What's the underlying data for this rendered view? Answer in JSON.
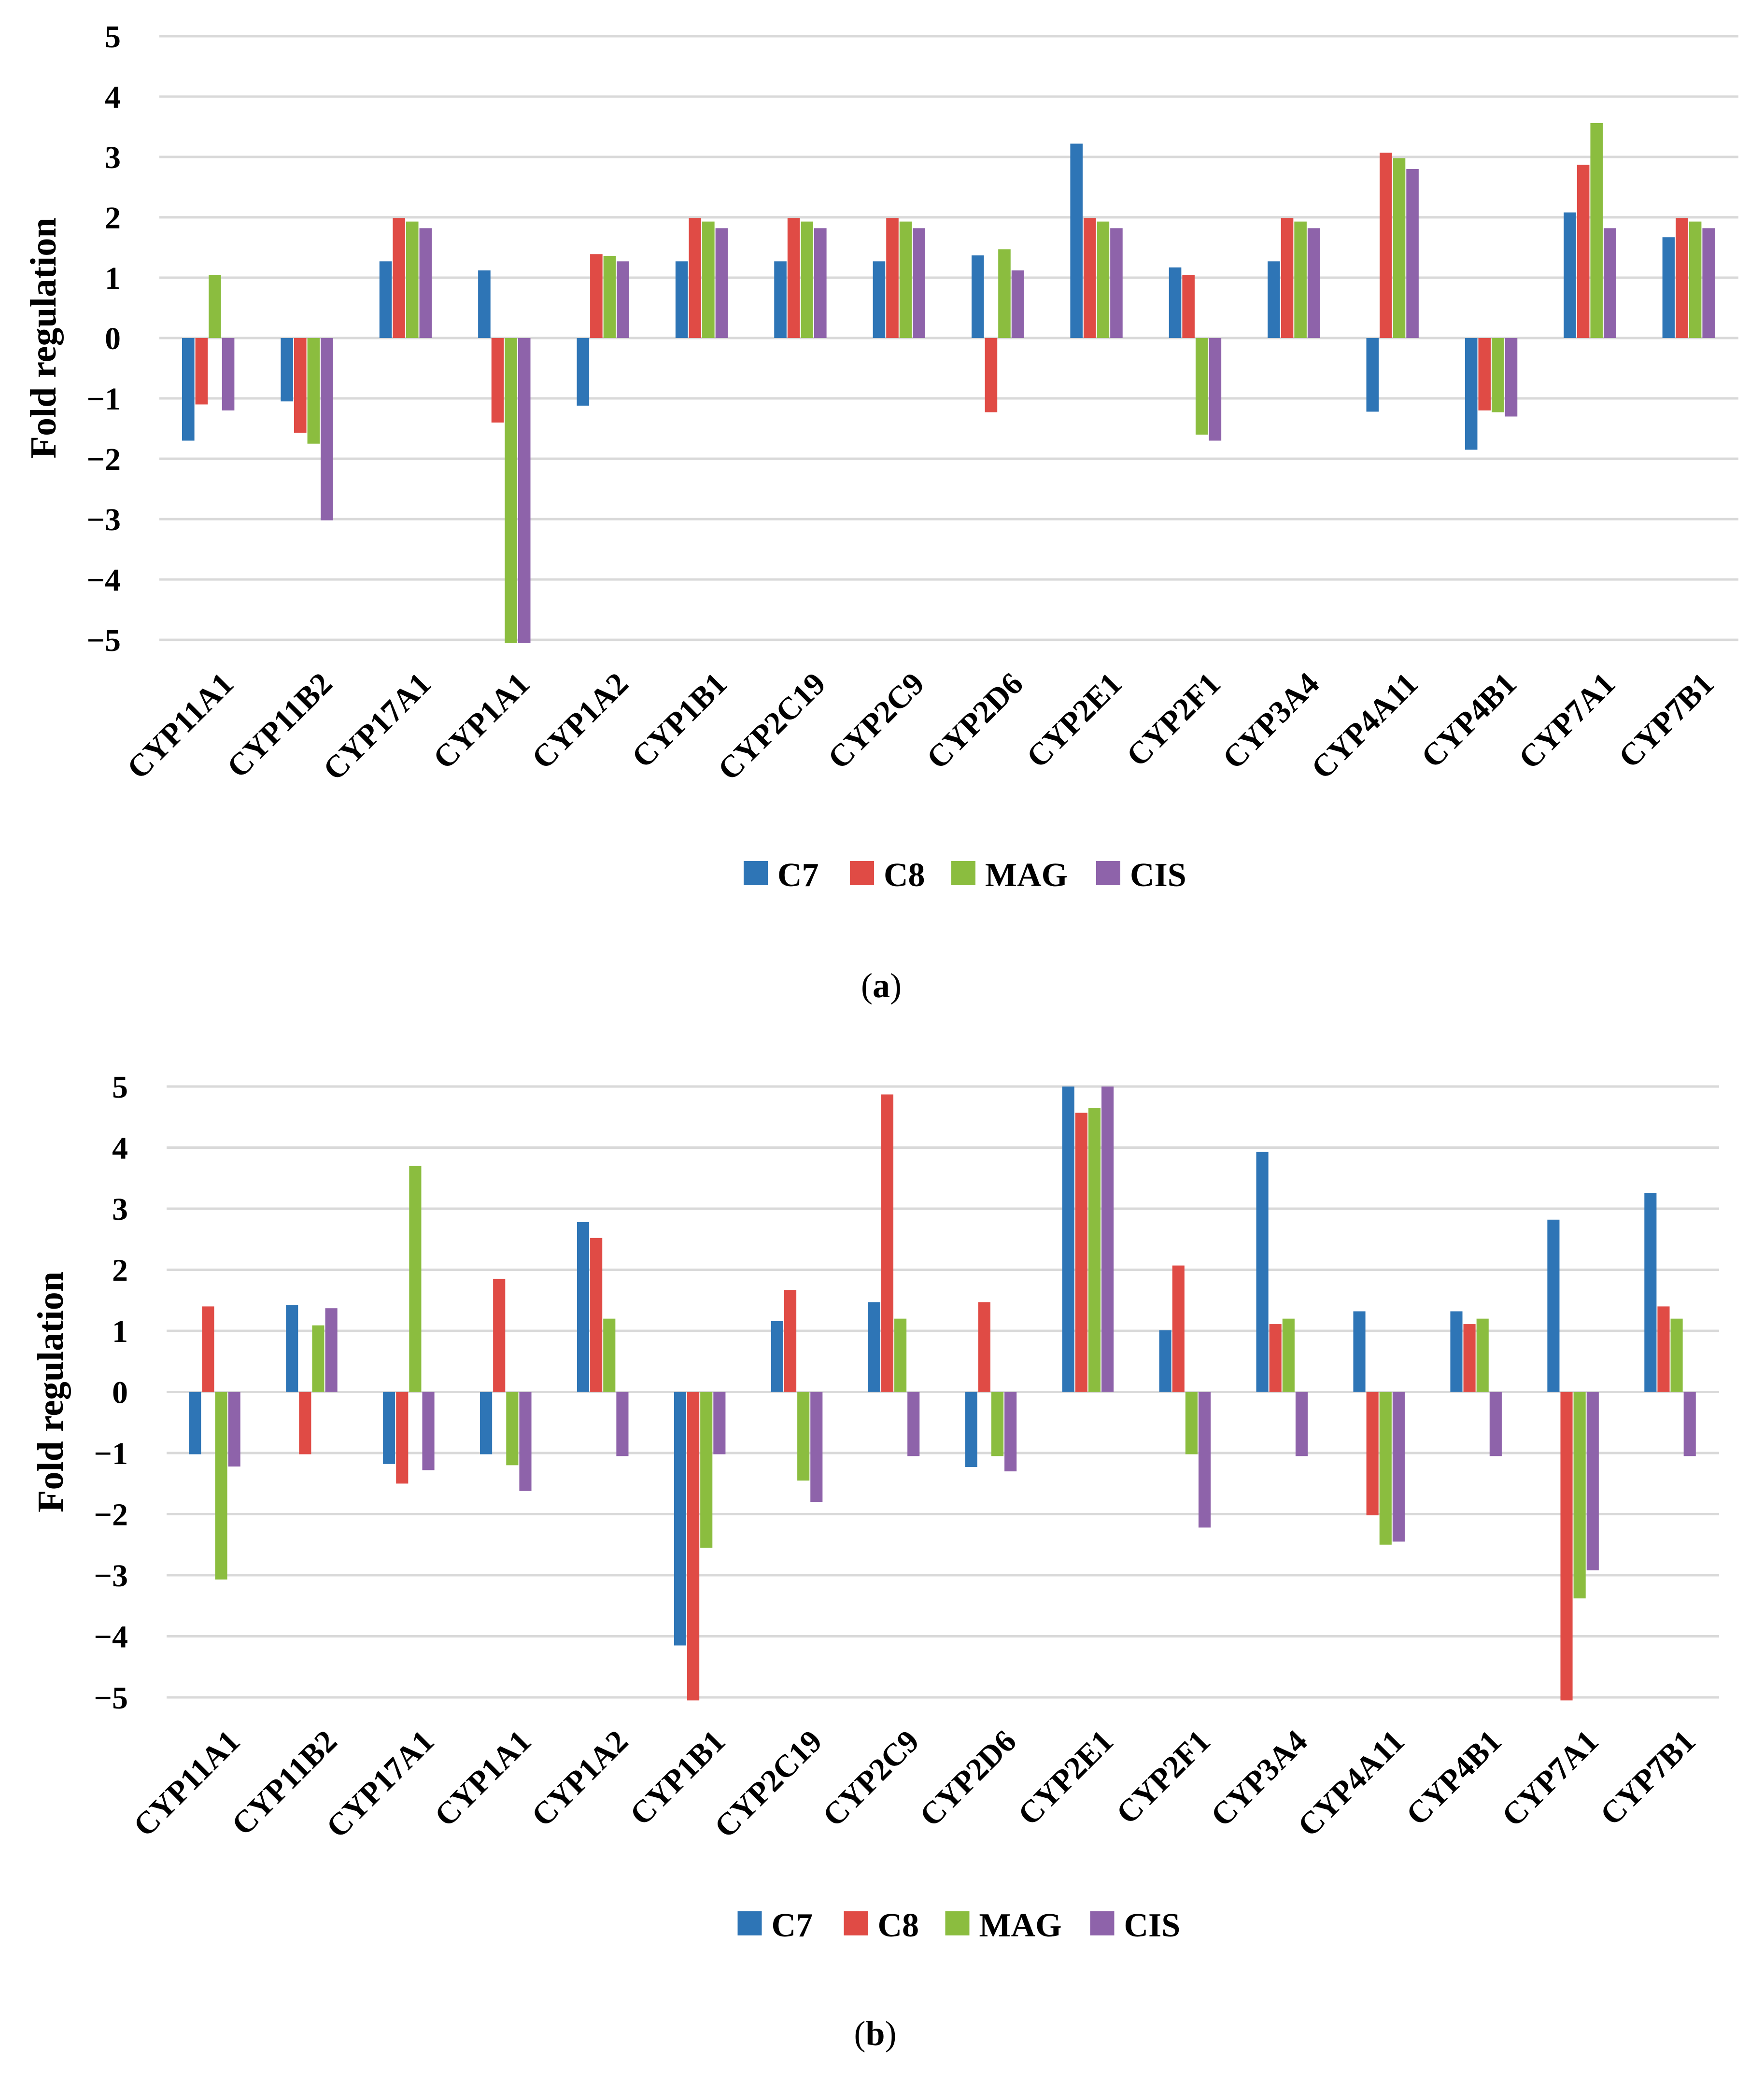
{
  "colors": {
    "C7": "#2e75b6",
    "C8": "#e04b45",
    "MAG": "#8bbd3f",
    "CIS": "#8e63aa",
    "grid": "#d9d9d9"
  },
  "chart_data": [
    {
      "type": "bar",
      "panel_label": "a",
      "ylabel": "Fold regulation",
      "ylim": [
        -5,
        5
      ],
      "yticks": [
        5,
        4,
        3,
        2,
        1,
        0,
        -1,
        -2,
        -3,
        -4,
        -5
      ],
      "ytick_labels": [
        "5",
        "4",
        "3",
        "2",
        "1",
        "0",
        "−1",
        "−2",
        "−3",
        "−4",
        "−5"
      ],
      "grid": true,
      "legend": "bottom",
      "categories": [
        "CYP11A1",
        "CYP11B2",
        "CYP17A1",
        "CYP1A1",
        "CYP1A2",
        "CYP1B1",
        "CYP2C19",
        "CYP2C9",
        "CYP2D6",
        "CYP2E1",
        "CYP2F1",
        "CYP3A4",
        "CYP4A11",
        "CYP4B1",
        "CYP7A1",
        "CYP7B1"
      ],
      "series": [
        {
          "name": "C7",
          "values": [
            -1.7,
            -1.05,
            1.27,
            1.12,
            -1.12,
            1.27,
            1.27,
            1.27,
            1.37,
            3.22,
            1.17,
            1.27,
            -1.22,
            -1.85,
            2.08,
            1.67
          ]
        },
        {
          "name": "C8",
          "values": [
            -1.1,
            -1.57,
            1.99,
            -1.4,
            1.39,
            1.99,
            1.99,
            1.99,
            -1.23,
            1.99,
            1.04,
            1.99,
            3.07,
            -1.2,
            2.87,
            1.99
          ]
        },
        {
          "name": "MAG",
          "values": [
            1.04,
            -1.75,
            1.93,
            -5.05,
            1.36,
            1.93,
            1.93,
            1.93,
            1.47,
            1.93,
            -1.6,
            1.93,
            2.98,
            -1.23,
            3.56,
            1.93
          ]
        },
        {
          "name": "CIS",
          "values": [
            -1.2,
            -3.02,
            1.82,
            -5.05,
            1.27,
            1.82,
            1.82,
            1.82,
            1.12,
            1.82,
            -1.7,
            1.82,
            2.8,
            -1.3,
            1.82,
            1.82
          ]
        }
      ]
    },
    {
      "type": "bar",
      "panel_label": "b",
      "ylabel": "Fold regulation",
      "ylim": [
        -5,
        5
      ],
      "yticks": [
        5,
        4,
        3,
        2,
        1,
        0,
        -1,
        -2,
        -3,
        -4,
        -5
      ],
      "ytick_labels": [
        "5",
        "4",
        "3",
        "2",
        "1",
        "0",
        "−1",
        "−2",
        "−3",
        "−4",
        "−5"
      ],
      "grid": true,
      "legend": "bottom",
      "categories": [
        "CYP11A1",
        "CYP11B2",
        "CYP17A1",
        "CYP1A1",
        "CYP1A2",
        "CYP1B1",
        "CYP2C19",
        "CYP2C9",
        "CYP2D6",
        "CYP2E1",
        "CYP2F1",
        "CYP3A4",
        "CYP4A11",
        "CYP4B1",
        "CYP7A1",
        "CYP7B1"
      ],
      "series": [
        {
          "name": "C7",
          "values": [
            -1.02,
            1.42,
            -1.18,
            -1.02,
            2.78,
            -4.15,
            1.16,
            1.47,
            -1.23,
            5.0,
            1.01,
            3.93,
            1.32,
            1.32,
            2.82,
            3.26
          ]
        },
        {
          "name": "C8",
          "values": [
            1.4,
            -1.02,
            -1.5,
            1.85,
            2.52,
            -5.05,
            1.67,
            4.87,
            1.47,
            4.57,
            2.07,
            1.11,
            -2.02,
            1.11,
            -5.05,
            1.4
          ]
        },
        {
          "name": "MAG",
          "values": [
            -3.07,
            1.09,
            3.7,
            -1.2,
            1.2,
            -2.55,
            -1.45,
            1.2,
            -1.05,
            4.65,
            -1.02,
            1.2,
            -2.5,
            1.2,
            -3.38,
            1.2
          ]
        },
        {
          "name": "CIS",
          "values": [
            -1.22,
            1.37,
            -1.28,
            -1.62,
            -1.05,
            -1.02,
            -1.8,
            -1.05,
            -1.3,
            5.0,
            -2.22,
            -1.05,
            -2.45,
            -1.05,
            -2.92,
            -1.05
          ]
        }
      ]
    }
  ]
}
